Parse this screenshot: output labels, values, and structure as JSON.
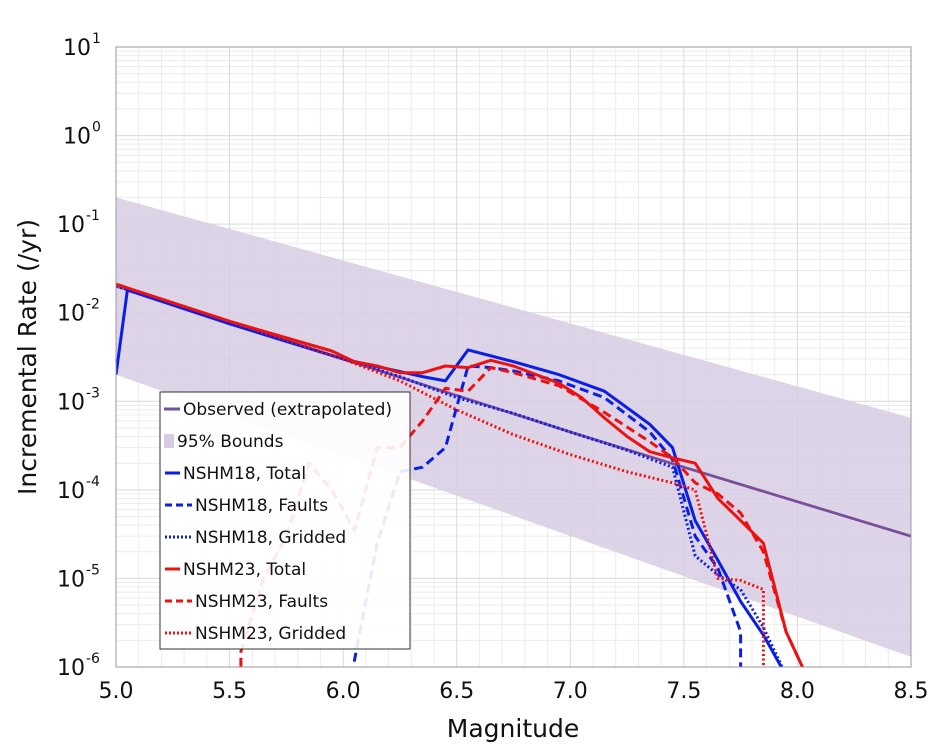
{
  "chart_data": {
    "type": "line",
    "title": "",
    "xlabel": "Magnitude",
    "ylabel": "Incremental Rate (/yr)",
    "xlim": [
      5.0,
      8.5
    ],
    "ylim": [
      1e-06,
      10
    ],
    "yscale": "log",
    "grid": true,
    "legend_placement": "lower-left",
    "x_ticks": [
      {
        "value": 5.0,
        "label": "5.0"
      },
      {
        "value": 5.5,
        "label": "5.5"
      },
      {
        "value": 6.0,
        "label": "6.0"
      },
      {
        "value": 6.5,
        "label": "6.5"
      },
      {
        "value": 7.0,
        "label": "7.0"
      },
      {
        "value": 7.5,
        "label": "7.5"
      },
      {
        "value": 8.0,
        "label": "8.0"
      },
      {
        "value": 8.5,
        "label": "8.5"
      }
    ],
    "y_ticks": [
      {
        "value": 1e-06,
        "base": "10",
        "exp": "-6"
      },
      {
        "value": 1e-05,
        "base": "10",
        "exp": "-5"
      },
      {
        "value": 0.0001,
        "base": "10",
        "exp": "-4"
      },
      {
        "value": 0.001,
        "base": "10",
        "exp": "-3"
      },
      {
        "value": 0.01,
        "base": "10",
        "exp": "-2"
      },
      {
        "value": 0.1,
        "base": "10",
        "exp": "-1"
      },
      {
        "value": 1,
        "base": "10",
        "exp": "0"
      },
      {
        "value": 10,
        "base": "10",
        "exp": "1"
      }
    ],
    "bounds": {
      "name": "95% Bounds",
      "color": "#d8cce3",
      "x": [
        5.0,
        8.5
      ],
      "upper": [
        0.2,
        0.00065
      ],
      "lower": [
        0.002,
        1.3e-06
      ]
    },
    "series": [
      {
        "name": "Observed (extrapolated)",
        "color": "#7a4f9a",
        "style": "solid",
        "x": [
          5.0,
          6.0,
          7.0,
          7.5,
          8.5
        ],
        "y": [
          0.02,
          0.003,
          0.00045,
          0.00018,
          3e-05
        ]
      },
      {
        "name": "NSHM18, Total",
        "color": "#0a1ee6",
        "style": "solid",
        "x": [
          5.0,
          5.05,
          5.5,
          6.0,
          6.35,
          6.45,
          6.55,
          6.75,
          6.95,
          7.15,
          7.35,
          7.45,
          7.55,
          7.65,
          7.75,
          7.85,
          7.95,
          8.05
        ],
        "y": [
          0.002,
          0.018,
          0.0075,
          0.003,
          0.0019,
          0.0017,
          0.0038,
          0.0028,
          0.002,
          0.0013,
          0.00055,
          0.0003,
          4.5e-05,
          1.6e-05,
          5.5e-06,
          2.3e-06,
          8e-07,
          3e-07
        ]
      },
      {
        "name": "NSHM18, Faults",
        "color": "#0a1ee6",
        "style": "dashed",
        "x": [
          6.05,
          6.05,
          6.15,
          6.25,
          6.35,
          6.45,
          6.55,
          6.65,
          6.75,
          6.95,
          7.15,
          7.35,
          7.45,
          7.55,
          7.65,
          7.75,
          7.75
        ],
        "y": [
          8e-07,
          1.2e-06,
          2.5e-05,
          0.00016,
          0.00018,
          0.0003,
          0.0025,
          0.0024,
          0.0022,
          0.0017,
          0.0011,
          0.00045,
          0.00022,
          3e-05,
          1.3e-05,
          2.5e-06,
          9e-07
        ]
      },
      {
        "name": "NSHM18, Gridded",
        "color": "#0a1ee6",
        "style": "dotted",
        "x": [
          5.0,
          5.5,
          6.0,
          6.25,
          6.5,
          6.75,
          7.0,
          7.25,
          7.45,
          7.55,
          7.65,
          7.75,
          7.85,
          7.95
        ],
        "y": [
          0.02,
          0.0078,
          0.003,
          0.0019,
          0.0011,
          0.00073,
          0.00045,
          0.00028,
          0.00018,
          1.8e-05,
          1.1e-05,
          7.5e-06,
          2.8e-06,
          8e-07
        ]
      },
      {
        "name": "NSHM23, Total",
        "color": "#ee1111",
        "style": "solid",
        "x": [
          5.0,
          5.5,
          5.95,
          6.05,
          6.15,
          6.25,
          6.35,
          6.45,
          6.55,
          6.65,
          6.75,
          6.85,
          6.95,
          7.05,
          7.15,
          7.25,
          7.35,
          7.45,
          7.55,
          7.65,
          7.75,
          7.85,
          7.95,
          8.05
        ],
        "y": [
          0.021,
          0.008,
          0.0037,
          0.0028,
          0.0025,
          0.0021,
          0.0021,
          0.0025,
          0.0024,
          0.0029,
          0.0025,
          0.002,
          0.0016,
          0.0011,
          0.00065,
          0.0004,
          0.00027,
          0.00023,
          0.0002,
          8e-05,
          4.5e-05,
          2.5e-05,
          2.5e-06,
          7e-07
        ]
      },
      {
        "name": "NSHM23, Faults",
        "color": "#ee1111",
        "style": "dashed",
        "x": [
          5.55,
          5.55,
          5.65,
          5.75,
          5.85,
          5.95,
          6.05,
          6.15,
          6.25,
          6.35,
          6.45,
          6.55,
          6.65,
          6.75,
          6.95,
          7.15,
          7.35,
          7.45,
          7.55,
          7.65,
          7.75,
          7.85,
          7.95,
          8.05
        ],
        "y": [
          7e-07,
          1.5e-06,
          1e-05,
          3e-05,
          0.0002,
          0.0001,
          3.5e-05,
          0.0003,
          0.0003,
          0.0006,
          0.0014,
          0.0013,
          0.0024,
          0.0021,
          0.0015,
          0.00075,
          0.00035,
          0.00023,
          0.00012,
          9e-05,
          5.5e-05,
          2e-05,
          2.5e-06,
          7e-07
        ]
      },
      {
        "name": "NSHM23, Gridded",
        "color": "#ee1111",
        "style": "dotted",
        "x": [
          5.0,
          5.5,
          6.0,
          6.25,
          6.5,
          6.75,
          7.0,
          7.25,
          7.45,
          7.55,
          7.65,
          7.75,
          7.85,
          7.85
        ],
        "y": [
          0.021,
          0.008,
          0.003,
          0.0017,
          0.0008,
          0.00042,
          0.00025,
          0.00016,
          0.00012,
          0.0001,
          1e-05,
          9.5e-06,
          7.5e-06,
          7e-07
        ]
      }
    ],
    "legend": [
      {
        "label": "Observed (extrapolated)",
        "color": "#7a4f9a",
        "style": "solid"
      },
      {
        "label": "95% Bounds",
        "color": "#d8cce3",
        "style": "patch"
      },
      {
        "label": "NSHM18, Total",
        "color": "#0a1ee6",
        "style": "solid"
      },
      {
        "label": "NSHM18, Faults",
        "color": "#0a1ee6",
        "style": "dashed"
      },
      {
        "label": "NSHM18, Gridded",
        "color": "#0a1ee6",
        "style": "dotted"
      },
      {
        "label": "NSHM23, Total",
        "color": "#ee1111",
        "style": "solid"
      },
      {
        "label": "NSHM23, Faults",
        "color": "#ee1111",
        "style": "dashed"
      },
      {
        "label": "NSHM23, Gridded",
        "color": "#ee1111",
        "style": "dotted"
      }
    ]
  }
}
